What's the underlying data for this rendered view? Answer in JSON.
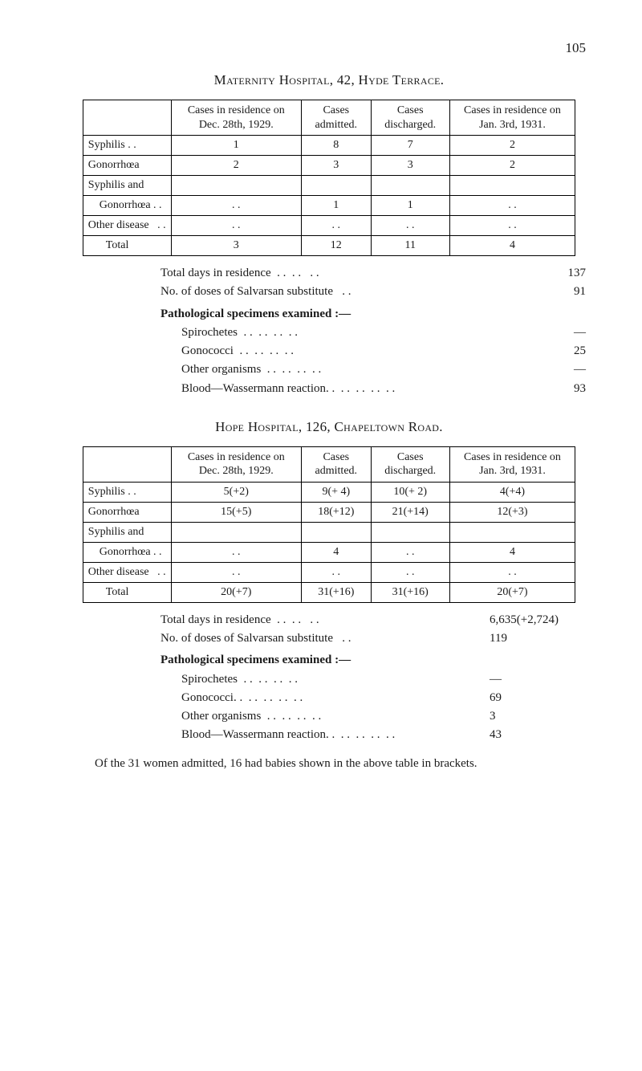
{
  "page_number": "105",
  "section1": {
    "title": "Maternity Hospital, 42, Hyde Terrace.",
    "table": {
      "columns": [
        "",
        "Cases in residence on Dec. 28th, 1929.",
        "Cases admitted.",
        "Cases discharged.",
        "Cases in residence on Jan. 3rd, 1931."
      ],
      "rows": [
        [
          "Syphilis . .",
          "1",
          "8",
          "7",
          "2"
        ],
        [
          "Gonorrhœa",
          "2",
          "3",
          "3",
          "2"
        ],
        [
          "Syphilis and",
          "",
          "",
          "",
          ""
        ],
        [
          "    Gonorrhœa . .",
          ". .",
          "1",
          "1",
          ". ."
        ],
        [
          "Other disease   . .",
          ". .",
          ". .",
          ". .",
          ". ."
        ]
      ],
      "total": [
        "Total",
        "3",
        "12",
        "11",
        "4"
      ]
    },
    "summary": {
      "total_days": {
        "label": "Total days in residence",
        "value": "137"
      },
      "doses": {
        "label": "No. of doses of Salvarsan substitute",
        "value": "91"
      },
      "path_heading": "Pathological specimens examined :—",
      "items": [
        {
          "label": "Spirochetes",
          "value": "—"
        },
        {
          "label": "Gonococci",
          "value": "25"
        },
        {
          "label": "Other organisms",
          "value": "—"
        },
        {
          "label": "Blood—Wassermann reaction. .",
          "value": "93"
        }
      ]
    }
  },
  "section2": {
    "title": "Hope Hospital, 126, Chapeltown Road.",
    "table": {
      "columns": [
        "",
        "Cases in residence on Dec. 28th, 1929.",
        "Cases admitted.",
        "Cases discharged.",
        "Cases in residence on Jan. 3rd, 1931."
      ],
      "rows": [
        [
          "Syphilis . .",
          "5(+2)",
          "9(+ 4)",
          "10(+ 2)",
          "4(+4)"
        ],
        [
          "Gonorrhœa",
          "15(+5)",
          "18(+12)",
          "21(+14)",
          "12(+3)"
        ],
        [
          "Syphilis and",
          "",
          "",
          "",
          ""
        ],
        [
          "    Gonorrhœa . .",
          ". .",
          "4",
          ". .",
          "4"
        ],
        [
          "Other disease   . .",
          ". .",
          ". .",
          ". .",
          ". ."
        ]
      ],
      "total": [
        "Total",
        "20(+7)",
        "31(+16)",
        "31(+16)",
        "20(+7)"
      ]
    },
    "summary": {
      "total_days": {
        "label": "Total days in residence",
        "value": "6,635(+2,724)"
      },
      "doses": {
        "label": "No. of doses of Salvarsan substitute",
        "value": "119"
      },
      "path_heading": "Pathological specimens examined :—",
      "items": [
        {
          "label": "Spirochetes",
          "value": "—"
        },
        {
          "label": "Gonococci. .",
          "value": "69"
        },
        {
          "label": "Other organisms",
          "value": "3"
        },
        {
          "label": "Blood—Wassermann reaction. .",
          "value": "43"
        }
      ]
    }
  },
  "closing_para": "Of the 31 women admitted, 16 had babies shown in the above table in brackets."
}
